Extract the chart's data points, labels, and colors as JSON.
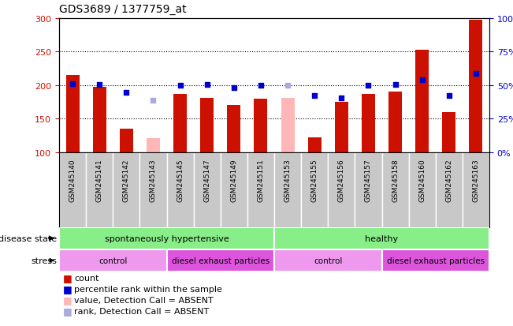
{
  "title": "GDS3689 / 1377759_at",
  "samples": [
    "GSM245140",
    "GSM245141",
    "GSM245142",
    "GSM245143",
    "GSM245145",
    "GSM245147",
    "GSM245149",
    "GSM245151",
    "GSM245153",
    "GSM245155",
    "GSM245156",
    "GSM245157",
    "GSM245158",
    "GSM245160",
    "GSM245162",
    "GSM245163"
  ],
  "counts": [
    215,
    198,
    135,
    null,
    187,
    181,
    170,
    180,
    null,
    122,
    175,
    187,
    190,
    253,
    160,
    298
  ],
  "counts_absent": [
    null,
    null,
    null,
    121,
    null,
    null,
    null,
    null,
    181,
    null,
    null,
    null,
    null,
    null,
    null,
    null
  ],
  "percentile_ranks": [
    202,
    201,
    189,
    null,
    200,
    201,
    196,
    200,
    null,
    185,
    181,
    200,
    201,
    208,
    185,
    217
  ],
  "percentile_ranks_absent": [
    null,
    null,
    null,
    178,
    null,
    null,
    null,
    null,
    200,
    null,
    null,
    null,
    null,
    null,
    null,
    null
  ],
  "ylim_left": [
    100,
    300
  ],
  "ylim_right": [
    0,
    100
  ],
  "yticks_left": [
    100,
    150,
    200,
    250,
    300
  ],
  "yticks_right": [
    0,
    25,
    50,
    75,
    100
  ],
  "ytick_labels_right": [
    "0%",
    "25%",
    "50%",
    "75%",
    "100%"
  ],
  "disease_state_label": "disease state",
  "stress_label": "stress",
  "bar_color": "#CC1100",
  "bar_color_absent": "#FFB6B6",
  "dot_color": "#0000CC",
  "dot_color_absent": "#AAAADD",
  "xtick_bg": "#C8C8C8",
  "ds_color": "#88EE88",
  "stress_color1": "#EE99EE",
  "stress_color2": "#DD55DD",
  "bar_width": 0.5,
  "dot_size": 25,
  "n_samples": 16,
  "split_idx": 8
}
